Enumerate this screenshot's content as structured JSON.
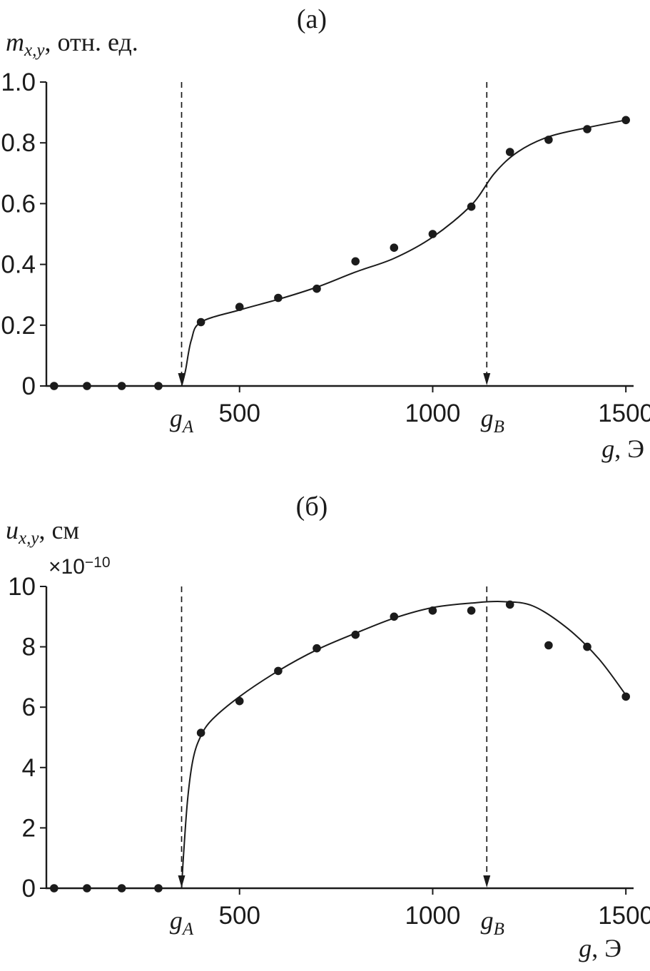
{
  "page": {
    "background": "#ffffff",
    "ink": "#1b1b1b"
  },
  "panels": [
    {
      "title": "(а)",
      "ylabel": {
        "var": "m",
        "sub": "x,y",
        "rest": ", отн. ед."
      },
      "xlabel": {
        "var": "g",
        "rest": ", Э"
      }
    },
    {
      "title": "(б)",
      "ylabel": {
        "var": "u",
        "sub": "x,y",
        "rest": ", см"
      },
      "xlabel": {
        "var": "g",
        "rest": ", Э"
      },
      "multiplier": {
        "base": "×10",
        "exp": "−10"
      }
    }
  ],
  "chart_data": [
    {
      "type": "scatter",
      "title": "(а)",
      "xlabel": "g, Э",
      "ylabel": "m_{x,y}, отн. ед.",
      "xlim": [
        0,
        1520
      ],
      "ylim": [
        0,
        1.0
      ],
      "xticks": [
        500,
        1000,
        1500
      ],
      "xtick_labels": [
        "500",
        "1000",
        "1500"
      ],
      "yticks": [
        0,
        0.2,
        0.4,
        0.6,
        0.8,
        1.0
      ],
      "ytick_labels": [
        "0",
        "0.2",
        "0.4",
        "0.6",
        "0.8",
        "1.0"
      ],
      "grid": false,
      "legend": false,
      "marker": "filled-circle",
      "x": [
        20,
        105,
        195,
        290,
        400,
        500,
        600,
        700,
        800,
        900,
        1000,
        1100,
        1200,
        1300,
        1400,
        1500
      ],
      "y": [
        0,
        0,
        0,
        0,
        0.21,
        0.26,
        0.29,
        0.32,
        0.41,
        0.455,
        0.5,
        0.59,
        0.77,
        0.81,
        0.845,
        0.875
      ],
      "curve": {
        "x": [
          350,
          360,
          375,
          400,
          500,
          600,
          700,
          800,
          900,
          1000,
          1100,
          1160,
          1220,
          1300,
          1400,
          1500
        ],
        "y": [
          0,
          0.05,
          0.15,
          0.21,
          0.25,
          0.285,
          0.325,
          0.375,
          0.42,
          0.49,
          0.595,
          0.7,
          0.77,
          0.82,
          0.85,
          0.875
        ]
      },
      "annotations": [
        {
          "var": "g",
          "sub": "A",
          "x": 350,
          "label_dx": 0
        },
        {
          "var": "g",
          "sub": "B",
          "x": 1140,
          "label_dx": 8
        }
      ]
    },
    {
      "type": "scatter",
      "title": "(б)",
      "xlabel": "g, Э",
      "ylabel": "u_{x,y}, см",
      "y_scale_factor": "×10⁻¹⁰",
      "xlim": [
        0,
        1520
      ],
      "ylim": [
        0,
        10
      ],
      "xticks": [
        500,
        1000,
        1500
      ],
      "xtick_labels": [
        "500",
        "1000",
        "1500"
      ],
      "yticks": [
        0,
        2,
        4,
        6,
        8,
        10
      ],
      "ytick_labels": [
        "0",
        "2",
        "4",
        "6",
        "8",
        "10"
      ],
      "grid": false,
      "legend": false,
      "marker": "filled-circle",
      "x": [
        20,
        105,
        195,
        290,
        400,
        500,
        600,
        700,
        800,
        900,
        1000,
        1100,
        1200,
        1300,
        1400,
        1500
      ],
      "y": [
        0,
        0,
        0,
        0,
        5.15,
        6.2,
        7.2,
        7.95,
        8.4,
        9.0,
        9.2,
        9.2,
        9.4,
        8.05,
        8.0,
        6.35
      ],
      "curve": {
        "x": [
          350,
          356,
          366,
          380,
          400,
          430,
          500,
          600,
          700,
          800,
          900,
          1000,
          1100,
          1180,
          1260,
          1350,
          1430,
          1500
        ],
        "y": [
          0,
          1.3,
          3.0,
          4.3,
          5.05,
          5.6,
          6.35,
          7.2,
          7.9,
          8.45,
          8.95,
          9.3,
          9.45,
          9.5,
          9.35,
          8.6,
          7.6,
          6.4
        ]
      },
      "annotations": [
        {
          "var": "g",
          "sub": "A",
          "x": 350,
          "label_dx": 0
        },
        {
          "var": "g",
          "sub": "B",
          "x": 1140,
          "label_dx": 8
        }
      ]
    }
  ]
}
